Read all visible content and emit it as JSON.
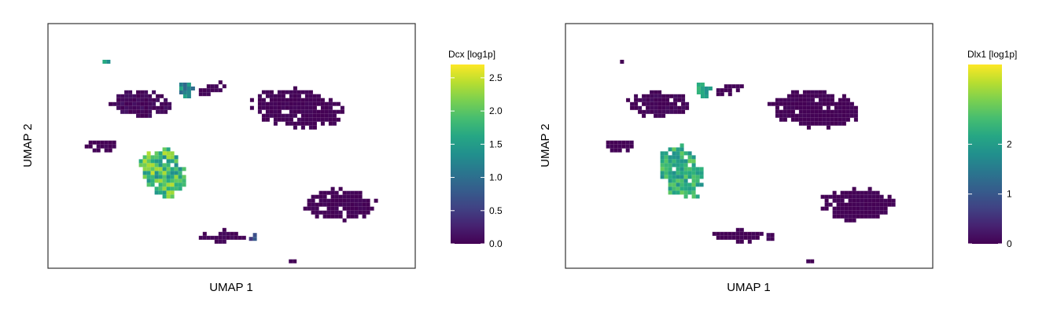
{
  "chart_data": [
    {
      "type": "heatmap",
      "title": "",
      "xlabel": "UMAP 1",
      "ylabel": "UMAP 2",
      "colorbar": {
        "title": "Dcx [log1p]",
        "range": [
          0,
          2.7
        ],
        "ticks": [
          0.0,
          0.5,
          1.0,
          1.5,
          2.0,
          2.5
        ],
        "tick_labels": [
          "0.0",
          "0.5",
          "1.0",
          "1.5",
          "2.0",
          "2.5"
        ],
        "colormap": "viridis"
      },
      "clusters": [
        {
          "cx": 0.31,
          "cy": 0.6,
          "rx": 0.055,
          "ry": 0.11,
          "level": 1.9,
          "spread": 0.6,
          "angle": -0.5
        },
        {
          "cx": 0.25,
          "cy": 0.32,
          "rx": 0.085,
          "ry": 0.05,
          "level": 0.05,
          "spread": 0.1,
          "angle": 0.0
        },
        {
          "cx": 0.37,
          "cy": 0.26,
          "rx": 0.022,
          "ry": 0.035,
          "level": 1.3,
          "spread": 0.4,
          "angle": 0.0
        },
        {
          "cx": 0.67,
          "cy": 0.34,
          "rx": 0.12,
          "ry": 0.075,
          "level": 0.02,
          "spread": 0.05,
          "angle": 0.1
        },
        {
          "cx": 0.79,
          "cy": 0.73,
          "rx": 0.095,
          "ry": 0.065,
          "level": 0.02,
          "spread": 0.05,
          "angle": 0.0
        },
        {
          "cx": 0.47,
          "cy": 0.86,
          "rx": 0.07,
          "ry": 0.025,
          "level": 0.03,
          "spread": 0.05,
          "angle": 0.0
        },
        {
          "cx": 0.44,
          "cy": 0.26,
          "rx": 0.04,
          "ry": 0.02,
          "level": 0.02,
          "spread": 0.05,
          "angle": -0.3
        },
        {
          "cx": 0.14,
          "cy": 0.49,
          "rx": 0.04,
          "ry": 0.025,
          "level": 0.02,
          "spread": 0.05,
          "angle": 0.0
        },
        {
          "cx": 0.55,
          "cy": 0.86,
          "rx": 0.012,
          "ry": 0.02,
          "level": 0.6,
          "spread": 0.3,
          "angle": 0.0
        },
        {
          "cx": 0.15,
          "cy": 0.15,
          "rx": 0.012,
          "ry": 0.008,
          "level": 1.5,
          "spread": 0.2,
          "angle": 0.0
        },
        {
          "cx": 0.66,
          "cy": 0.97,
          "rx": 0.015,
          "ry": 0.01,
          "level": 0.02,
          "spread": 0.05,
          "angle": 0.0
        }
      ]
    },
    {
      "type": "heatmap",
      "title": "",
      "xlabel": "UMAP 1",
      "ylabel": "UMAP 2",
      "colorbar": {
        "title": "Dlx1 [log1p]",
        "range": [
          0,
          3.6
        ],
        "ticks": [
          0,
          1,
          2
        ],
        "tick_labels": [
          "0",
          "1",
          "2"
        ],
        "colormap": "viridis"
      },
      "clusters": [
        {
          "cx": 0.31,
          "cy": 0.6,
          "rx": 0.055,
          "ry": 0.11,
          "level": 2.3,
          "spread": 0.5,
          "angle": -0.5
        },
        {
          "cx": 0.25,
          "cy": 0.32,
          "rx": 0.085,
          "ry": 0.05,
          "level": 0.05,
          "spread": 0.1,
          "angle": 0.0
        },
        {
          "cx": 0.37,
          "cy": 0.26,
          "rx": 0.022,
          "ry": 0.035,
          "level": 2.2,
          "spread": 0.4,
          "angle": 0.0
        },
        {
          "cx": 0.67,
          "cy": 0.34,
          "rx": 0.12,
          "ry": 0.075,
          "level": 0.02,
          "spread": 0.05,
          "angle": 0.1
        },
        {
          "cx": 0.79,
          "cy": 0.73,
          "rx": 0.095,
          "ry": 0.065,
          "level": 0.02,
          "spread": 0.05,
          "angle": 0.0
        },
        {
          "cx": 0.47,
          "cy": 0.86,
          "rx": 0.07,
          "ry": 0.025,
          "level": 0.03,
          "spread": 0.05,
          "angle": 0.0
        },
        {
          "cx": 0.44,
          "cy": 0.26,
          "rx": 0.04,
          "ry": 0.02,
          "level": 0.02,
          "spread": 0.05,
          "angle": -0.3
        },
        {
          "cx": 0.14,
          "cy": 0.49,
          "rx": 0.04,
          "ry": 0.025,
          "level": 0.02,
          "spread": 0.05,
          "angle": 0.0
        },
        {
          "cx": 0.55,
          "cy": 0.86,
          "rx": 0.012,
          "ry": 0.02,
          "level": 0.1,
          "spread": 0.1,
          "angle": 0.0
        },
        {
          "cx": 0.15,
          "cy": 0.15,
          "rx": 0.012,
          "ry": 0.008,
          "level": 0.02,
          "spread": 0.05,
          "angle": 0.0
        },
        {
          "cx": 0.66,
          "cy": 0.97,
          "rx": 0.015,
          "ry": 0.01,
          "level": 0.02,
          "spread": 0.05,
          "angle": 0.0
        }
      ]
    }
  ]
}
